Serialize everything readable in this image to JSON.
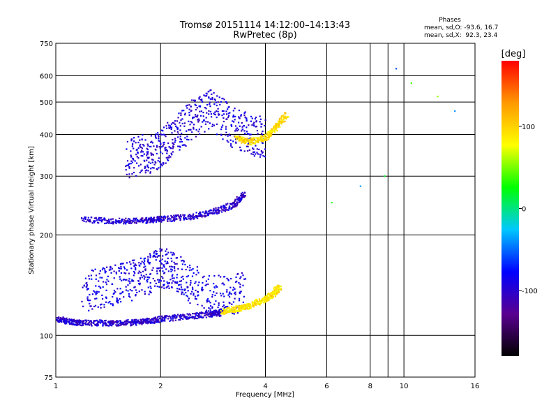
{
  "chart_data": {
    "type": "scatter",
    "title": "Tromsø 20151114 14:12:00–14:13:43",
    "subtitle": "RwPretec (8p)",
    "xlabel": "Frequency [MHz]",
    "ylabel": "Stationary phase Virtual Height [km]",
    "xscale": "log",
    "yscale": "log",
    "xlim": [
      1,
      16
    ],
    "ylim": [
      75,
      750
    ],
    "grid": true,
    "x_ticks": [
      1,
      2,
      4,
      6,
      8,
      10,
      16
    ],
    "x_tick_labels": [
      "1",
      "2",
      "4",
      "6",
      "8",
      "10",
      "16"
    ],
    "x_gridlines": [
      2,
      4,
      6,
      8,
      9,
      10
    ],
    "y_ticks": [
      75,
      100,
      200,
      300,
      400,
      500,
      600,
      750
    ],
    "y_tick_labels": [
      "75",
      "100",
      "200",
      "300",
      "400",
      "500",
      "600",
      "750"
    ],
    "y_gridlines": [
      100,
      200,
      300,
      400,
      500,
      600
    ],
    "stats": {
      "heading": "Phases",
      "o_line": "mean, sd,O: -93.6, 16.7",
      "x_line": "mean, sd,X:  92.3, 23.4"
    },
    "colorbar": {
      "label": "[deg]",
      "min": -180,
      "max": 180,
      "ticks": [
        100,
        0,
        -100
      ],
      "tick_labels": [
        "100",
        "0",
        "-100"
      ],
      "colors": [
        "#000000",
        "#5a0090",
        "#0000ff",
        "#00c8ff",
        "#00ff00",
        "#ffff00",
        "#ff9900",
        "#ff0000"
      ]
    },
    "traces": [
      {
        "name_hint": "O-mode E/low trace",
        "phase": -100,
        "x": [
          1.0,
          1.1,
          1.2,
          1.4,
          1.6,
          1.8,
          2.0,
          2.4,
          2.8,
          3.0
        ],
        "y": [
          112,
          110,
          109,
          109,
          109,
          110,
          112,
          114,
          116,
          118
        ]
      },
      {
        "name_hint": "low-layer spread",
        "phase": -90,
        "x": [
          1.2,
          1.4,
          1.6,
          1.8,
          2.0,
          2.2,
          2.5,
          3.0,
          3.5
        ],
        "y": [
          135,
          140,
          145,
          150,
          160,
          155,
          140,
          130,
          135
        ]
      },
      {
        "name_hint": "X-mode low trace",
        "phase": 90,
        "x": [
          3.0,
          3.3,
          3.6,
          4.0,
          4.2,
          4.4
        ],
        "y": [
          118,
          120,
          123,
          128,
          133,
          140
        ]
      },
      {
        "name_hint": "O-mode F1 trace",
        "phase": -100,
        "x": [
          1.2,
          1.5,
          1.8,
          2.0,
          2.4,
          2.8,
          3.2,
          3.5
        ],
        "y": [
          222,
          220,
          221,
          223,
          226,
          233,
          245,
          265
        ]
      },
      {
        "name_hint": "O-mode F2 spread",
        "phase": -95,
        "x": [
          1.6,
          1.8,
          2.0,
          2.2,
          2.5,
          2.8,
          3.2,
          3.6,
          4.0
        ],
        "y": [
          340,
          350,
          360,
          400,
          450,
          480,
          420,
          400,
          390
        ]
      },
      {
        "name_hint": "X-mode F2 trace",
        "phase": 95,
        "x": [
          3.3,
          3.6,
          4.0,
          4.3,
          4.6
        ],
        "y": [
          390,
          380,
          390,
          420,
          460
        ]
      },
      {
        "name_hint": "isolated returns",
        "phase": 0,
        "x": [
          6.2,
          7.5,
          8.8,
          9.5,
          10.5,
          12.5,
          14.0
        ],
        "y": [
          250,
          280,
          300,
          630,
          570,
          520,
          470
        ]
      }
    ]
  }
}
